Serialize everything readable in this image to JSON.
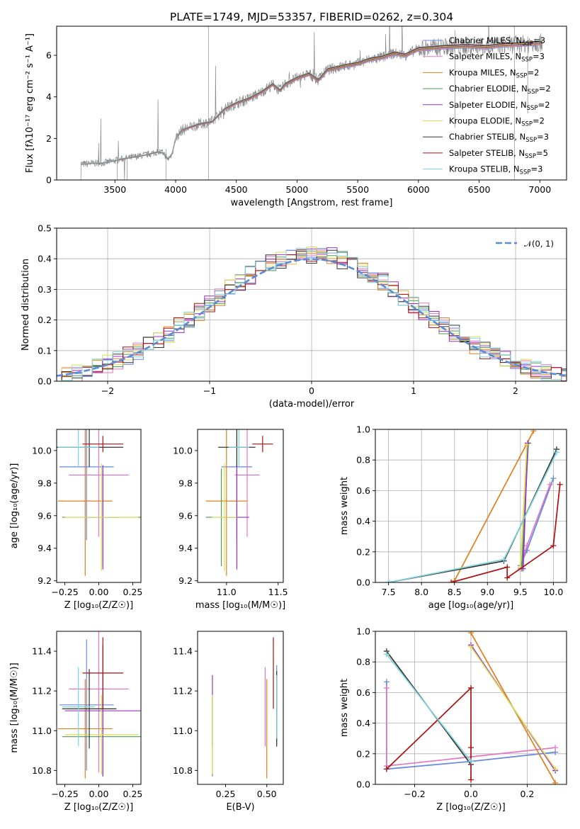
{
  "figure_title": "PLATE=1749, MJD=53357, FIBERID=0262, z=0.304",
  "series": [
    {
      "name": "Chabrier MILES",
      "n": "3",
      "color": "#6688dd"
    },
    {
      "name": "Salpeter MILES",
      "n": "3",
      "color": "#e377c2"
    },
    {
      "name": "Kroupa MILES",
      "n": "2",
      "color": "#e07f1c"
    },
    {
      "name": "Chabrier ELODIE",
      "n": "2",
      "color": "#4e9a50"
    },
    {
      "name": "Salpeter ELODIE",
      "n": "2",
      "color": "#9b30c8"
    },
    {
      "name": "Kroupa ELODIE",
      "n": "2",
      "color": "#dede55"
    },
    {
      "name": "Chabrier STELIB",
      "n": "3",
      "color": "#333333"
    },
    {
      "name": "Salpeter STELIB",
      "n": "5",
      "color": "#aa1111"
    },
    {
      "name": "Kroupa STELIB",
      "n": "3",
      "color": "#7fd3dd"
    }
  ],
  "chart_data": [
    {
      "id": "spectrum",
      "type": "line",
      "xlabel": "wavelength [Angstrom, rest frame]",
      "ylabel": "Flux [fλ10⁻¹⁷ erg cm⁻² s⁻¹ A⁻¹]",
      "xlim": [
        3020,
        7220
      ],
      "ylim": [
        0,
        7.4
      ],
      "xticks": [
        3500,
        4000,
        4500,
        5000,
        5500,
        6000,
        6500,
        7000
      ],
      "yticks": [
        0,
        2,
        4,
        6
      ],
      "legend": "upper right",
      "model_points": [
        [
          3210,
          0
        ],
        [
          3220,
          0.75
        ],
        [
          3300,
          0.8
        ],
        [
          3400,
          0.82
        ],
        [
          3480,
          0.9
        ],
        [
          3550,
          1.0
        ],
        [
          3650,
          1.1
        ],
        [
          3750,
          1.2
        ],
        [
          3850,
          1.35
        ],
        [
          3900,
          1.3
        ],
        [
          3935,
          1.0
        ],
        [
          3970,
          1.25
        ],
        [
          4000,
          2.0
        ],
        [
          4050,
          2.4
        ],
        [
          4100,
          2.5
        ],
        [
          4200,
          2.7
        ],
        [
          4300,
          2.8
        ],
        [
          4400,
          3.4
        ],
        [
          4500,
          3.7
        ],
        [
          4600,
          3.9
        ],
        [
          4700,
          4.2
        ],
        [
          4800,
          4.6
        ],
        [
          4861,
          4.3
        ],
        [
          4900,
          4.6
        ],
        [
          5000,
          4.9
        ],
        [
          5100,
          5.1
        ],
        [
          5175,
          4.8
        ],
        [
          5250,
          5.3
        ],
        [
          5400,
          5.5
        ],
        [
          5500,
          5.6
        ],
        [
          5600,
          5.8
        ],
        [
          5700,
          5.9
        ],
        [
          5800,
          6.1
        ],
        [
          5890,
          6.0
        ],
        [
          6000,
          6.3
        ],
        [
          6200,
          6.4
        ],
        [
          6400,
          6.45
        ],
        [
          6563,
          6.4
        ],
        [
          6700,
          6.5
        ],
        [
          6900,
          6.55
        ],
        [
          7000,
          6.6
        ]
      ],
      "data_color": "#888888"
    },
    {
      "id": "residuals",
      "type": "histogram",
      "xlabel": "(data-model)/error",
      "ylabel": "Normed distribution",
      "xlim": [
        -2.5,
        2.5
      ],
      "ylim": [
        0,
        0.5
      ],
      "xticks": [
        -2,
        -1,
        0,
        1,
        2
      ],
      "yticks": [
        0.0,
        0.1,
        0.2,
        0.3,
        0.4,
        0.5
      ],
      "grid": true,
      "legend": "upper right",
      "gaussian_label": "𝒩(0, 1)",
      "gaussian_color": "#5b8ad6",
      "bin_width": 0.1
    },
    {
      "id": "z-age",
      "type": "errorbar",
      "xlabel": "Z [log₁₀(Z/Z☉)]",
      "ylabel": "age  [log₁₀(age/yr)]",
      "xlim": [
        -0.31,
        0.31
      ],
      "ylim": [
        9.19,
        10.13
      ],
      "xticks": [
        -0.25,
        0.0,
        0.25
      ],
      "yticks": [
        9.2,
        9.4,
        9.6,
        9.8,
        10.0
      ],
      "points": [
        {
          "s": 0,
          "x": -0.09,
          "y": 9.9,
          "xe": 0.2,
          "ye": 0.45
        },
        {
          "s": 1,
          "x": 0.0,
          "y": 9.85,
          "xe": 0.22,
          "ye": 0.38
        },
        {
          "s": 2,
          "x": -0.1,
          "y": 9.69,
          "xe": 0.2,
          "ye": 0.46
        },
        {
          "s": 3,
          "x": 0.03,
          "y": 9.59,
          "xe": 0.3,
          "ye": 0.3
        },
        {
          "s": 4,
          "x": 0.03,
          "y": 9.59,
          "xe": 0.12,
          "ye": 0.32
        },
        {
          "s": 5,
          "x": 0.02,
          "y": 9.59,
          "xe": 0.27,
          "ye": 0.33
        },
        {
          "s": 6,
          "x": -0.07,
          "y": 10.02,
          "xe": 0.25,
          "ye": 0.12
        },
        {
          "s": 7,
          "x": 0.03,
          "y": 10.04,
          "xe": 0.15,
          "ye": 0.05
        },
        {
          "s": 8,
          "x": -0.15,
          "y": 10.02,
          "xe": 0.15,
          "ye": 0.12
        }
      ]
    },
    {
      "id": "mass-age",
      "type": "errorbar",
      "xlabel": "mass [log₁₀(M/M☉)]",
      "ylabel": "",
      "xlim": [
        10.72,
        11.55
      ],
      "ylim": [
        9.19,
        10.13
      ],
      "xticks": [
        11.0,
        11.5
      ],
      "yticks": [
        9.2,
        9.4,
        9.6,
        9.8,
        10.0
      ],
      "points": [
        {
          "s": 0,
          "x": 11.1,
          "y": 9.9,
          "xe": 0.15,
          "ye": 0.45
        },
        {
          "s": 1,
          "x": 11.2,
          "y": 9.85,
          "xe": 0.12,
          "ye": 0.38
        },
        {
          "s": 2,
          "x": 11.0,
          "y": 9.69,
          "xe": 0.2,
          "ye": 0.46
        },
        {
          "s": 3,
          "x": 10.95,
          "y": 9.59,
          "xe": 0.15,
          "ye": 0.3
        },
        {
          "s": 4,
          "x": 11.1,
          "y": 9.59,
          "xe": 0.12,
          "ye": 0.32
        },
        {
          "s": 5,
          "x": 10.98,
          "y": 9.59,
          "xe": 0.12,
          "ye": 0.33
        },
        {
          "s": 6,
          "x": 11.1,
          "y": 10.02,
          "xe": 0.18,
          "ye": 0.12
        },
        {
          "s": 7,
          "x": 11.35,
          "y": 10.04,
          "xe": 0.1,
          "ye": 0.05
        },
        {
          "s": 8,
          "x": 11.12,
          "y": 10.02,
          "xe": 0.1,
          "ye": 0.12
        }
      ]
    },
    {
      "id": "age-weight",
      "type": "line",
      "xlabel": "age  [log₁₀(age/yr)]",
      "ylabel": "mass weight",
      "xlim": [
        7.3,
        10.2
      ],
      "ylim": [
        0,
        1.0
      ],
      "xticks": [
        7.5,
        8.0,
        8.5,
        9.0,
        9.5,
        10.0
      ],
      "yticks": [
        0.0,
        0.2,
        0.4,
        0.6,
        0.8,
        1.0
      ],
      "grid": true,
      "lines": [
        {
          "s": 0,
          "pts": [
            [
              9.5,
              0.11
            ],
            [
              9.6,
              0.21
            ],
            [
              10.0,
              0.68
            ]
          ]
        },
        {
          "s": 1,
          "pts": [
            [
              9.5,
              0.09
            ],
            [
              9.6,
              0.24
            ],
            [
              9.95,
              0.64
            ]
          ]
        },
        {
          "s": 2,
          "pts": [
            [
              8.5,
              0.01
            ],
            [
              9.7,
              0.99
            ]
          ]
        },
        {
          "s": 3,
          "pts": [
            [
              9.52,
              0.09
            ],
            [
              9.62,
              0.91
            ]
          ]
        },
        {
          "s": 4,
          "pts": [
            [
              9.54,
              0.09
            ],
            [
              9.61,
              0.91
            ]
          ]
        },
        {
          "s": 5,
          "pts": [
            [
              9.5,
              0.1
            ],
            [
              9.6,
              0.9
            ]
          ]
        },
        {
          "s": 6,
          "pts": [
            [
              7.5,
              0.0
            ],
            [
              9.25,
              0.14
            ],
            [
              10.05,
              0.87
            ]
          ]
        },
        {
          "s": 7,
          "pts": [
            [
              8.45,
              0.0
            ],
            [
              9.3,
              0.1
            ],
            [
              9.3,
              0.03
            ],
            [
              10.0,
              0.24
            ],
            [
              10.1,
              0.64
            ]
          ]
        },
        {
          "s": 8,
          "pts": [
            [
              7.5,
              0.0
            ],
            [
              9.25,
              0.15
            ],
            [
              10.05,
              0.85
            ]
          ]
        }
      ]
    },
    {
      "id": "z-mass",
      "type": "errorbar",
      "xlabel": "Z [log₁₀(Z/Z☉)]",
      "ylabel": "mass [log₁₀(M/M☉)]",
      "xlim": [
        -0.31,
        0.31
      ],
      "ylim": [
        10.73,
        11.5
      ],
      "xticks": [
        -0.25,
        0.0,
        0.25
      ],
      "yticks": [
        10.8,
        11.0,
        11.2,
        11.4
      ],
      "points": [
        {
          "s": 0,
          "x": -0.09,
          "y": 11.13,
          "xe": 0.2,
          "ye": 0.33
        },
        {
          "s": 1,
          "x": 0.0,
          "y": 11.21,
          "xe": 0.22,
          "ye": 0.42
        },
        {
          "s": 2,
          "x": -0.1,
          "y": 11.01,
          "xe": 0.2,
          "ye": 0.25
        },
        {
          "s": 3,
          "x": 0.03,
          "y": 10.97,
          "xe": 0.3,
          "ye": 0.2
        },
        {
          "s": 4,
          "x": 0.03,
          "y": 11.1,
          "xe": 0.28,
          "ye": 0.33
        },
        {
          "s": 5,
          "x": 0.02,
          "y": 10.98,
          "xe": 0.27,
          "ye": 0.2
        },
        {
          "s": 6,
          "x": -0.07,
          "y": 11.11,
          "xe": 0.2,
          "ye": 0.2
        },
        {
          "s": 7,
          "x": 0.03,
          "y": 11.29,
          "xe": 0.15,
          "ye": 0.18
        },
        {
          "s": 8,
          "x": -0.15,
          "y": 11.12,
          "xe": 0.12,
          "ye": 0.2
        }
      ]
    },
    {
      "id": "ebv-mass",
      "type": "errorbar",
      "xlabel": "E(B-V)",
      "ylabel": "",
      "xlim": [
        0.08,
        0.6
      ],
      "ylim": [
        10.73,
        11.5
      ],
      "xticks": [
        0.25,
        0.5
      ],
      "yticks": [
        10.8,
        11.0,
        11.2,
        11.4
      ],
      "points": [
        {
          "s": 0,
          "x": 0.56,
          "y": 11.13,
          "xe": 0,
          "ye": 0.2
        },
        {
          "s": 1,
          "x": 0.49,
          "y": 11.12,
          "xe": 0,
          "ye": 0.2
        },
        {
          "s": 2,
          "x": 0.5,
          "y": 11.01,
          "xe": 0,
          "ye": 0.25
        },
        {
          "s": 3,
          "x": 0.17,
          "y": 10.97,
          "xe": 0,
          "ye": 0.2
        },
        {
          "s": 4,
          "x": 0.17,
          "y": 11.1,
          "xe": 0,
          "ye": 0.18
        },
        {
          "s": 5,
          "x": 0.17,
          "y": 10.98,
          "xe": 0,
          "ye": 0.2
        },
        {
          "s": 6,
          "x": 0.56,
          "y": 11.11,
          "xe": 0,
          "ye": 0.19
        },
        {
          "s": 7,
          "x": 0.54,
          "y": 11.29,
          "xe": 0,
          "ye": 0.18
        },
        {
          "s": 8,
          "x": 0.56,
          "y": 11.12,
          "xe": 0,
          "ye": 0.16
        }
      ]
    },
    {
      "id": "z-weight",
      "type": "line",
      "xlabel": "Z [log₁₀(Z/Z☉)]",
      "ylabel": "mass weight",
      "xlim": [
        -0.34,
        0.34
      ],
      "ylim": [
        0,
        1.0
      ],
      "xticks": [
        -0.2,
        0.0,
        0.2
      ],
      "yticks": [
        0.0,
        0.2,
        0.4,
        0.6,
        0.8,
        1.0
      ],
      "grid": true,
      "lines": [
        {
          "s": 0,
          "pts": [
            [
              -0.3,
              0.67
            ],
            [
              -0.3,
              0.1
            ],
            [
              0.0,
              0.15
            ],
            [
              0.3,
              0.21
            ]
          ]
        },
        {
          "s": 1,
          "pts": [
            [
              -0.3,
              0.63
            ],
            [
              -0.3,
              0.12
            ],
            [
              0.3,
              0.24
            ]
          ]
        },
        {
          "s": 2,
          "pts": [
            [
              0.0,
              0.99
            ],
            [
              0.3,
              0.01
            ]
          ]
        },
        {
          "s": 3,
          "pts": [
            [
              0.0,
              0.91
            ],
            [
              0.3,
              0.09
            ]
          ]
        },
        {
          "s": 4,
          "pts": [
            [
              0.0,
              0.91
            ],
            [
              0.3,
              0.09
            ]
          ]
        },
        {
          "s": 5,
          "pts": [
            [
              0.0,
              0.9
            ],
            [
              0.3,
              0.1
            ]
          ]
        },
        {
          "s": 6,
          "pts": [
            [
              -0.3,
              0.87
            ],
            [
              0.0,
              0.13
            ]
          ]
        },
        {
          "s": 7,
          "pts": [
            [
              -0.3,
              0.1
            ],
            [
              0.0,
              0.63
            ],
            [
              0.0,
              0.24
            ],
            [
              0.0,
              0.03
            ]
          ]
        },
        {
          "s": 8,
          "pts": [
            [
              -0.3,
              0.85
            ],
            [
              0.0,
              0.15
            ]
          ]
        }
      ]
    }
  ]
}
